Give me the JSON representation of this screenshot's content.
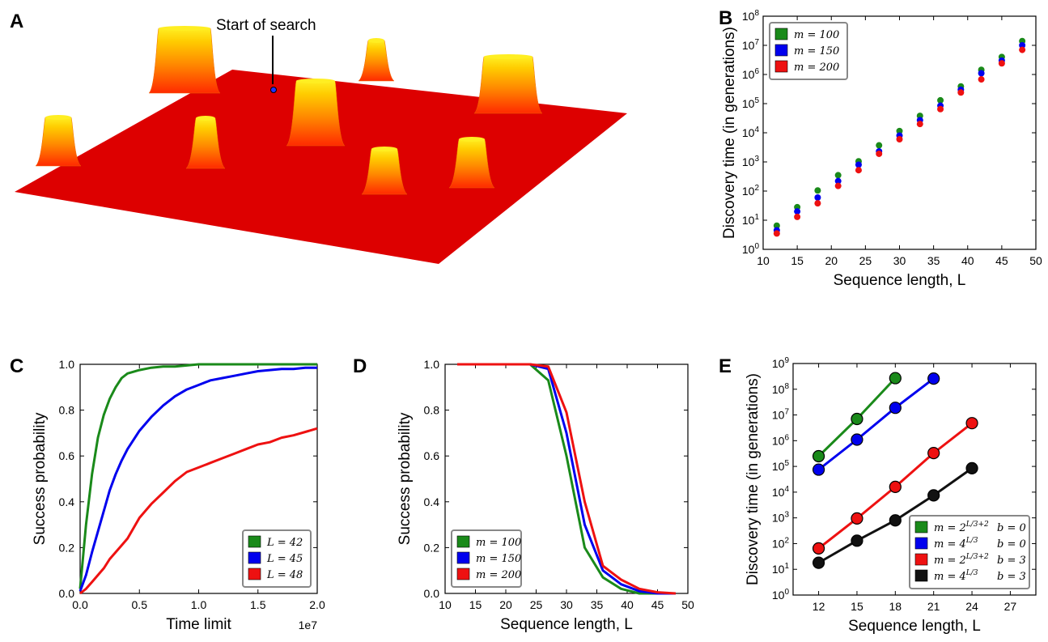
{
  "panel_letters": {
    "a": "A",
    "b": "B",
    "c": "C",
    "d": "D",
    "e": "E"
  },
  "panel_a": {
    "annotation": "Start of search",
    "colors": {
      "base": "#dd0000",
      "peak_low": "#ff3300",
      "peak_mid": "#ff9900",
      "peak_top": "#ffee00"
    }
  },
  "chart_data": [
    {
      "id": "B",
      "type": "scatter",
      "title": "",
      "xlabel": "Sequence length, L",
      "ylabel": "Discovery time (in generations)",
      "xlim": [
        10,
        50
      ],
      "ylim": [
        1,
        100000000
      ],
      "yscale": "log",
      "xticks": [
        "10",
        "15",
        "20",
        "25",
        "30",
        "35",
        "40",
        "45",
        "50"
      ],
      "yticks": [
        "10^0",
        "10^1",
        "10^2",
        "10^3",
        "10^4",
        "10^5",
        "10^6",
        "10^7",
        "10^8"
      ],
      "legend_placement": "top-left",
      "x": [
        12,
        15,
        18,
        21,
        24,
        27,
        30,
        33,
        36,
        39,
        42,
        45,
        48
      ],
      "series": [
        {
          "name": "m=100",
          "color": "#1a8a1a",
          "values": [
            6.5,
            28,
            105,
            350,
            1050,
            3700,
            11500,
            38000,
            130000,
            390000,
            1450000,
            4000000,
            14000000
          ]
        },
        {
          "name": "m=150",
          "color": "#0000ee",
          "values": [
            4.5,
            20,
            60,
            220,
            800,
            2300,
            8000,
            27000,
            85000,
            300000,
            1100000,
            3000000,
            10000000
          ]
        },
        {
          "name": "m=200",
          "color": "#ee1111",
          "values": [
            3.5,
            13,
            38,
            150,
            520,
            1900,
            6000,
            20000,
            65000,
            240000,
            680000,
            2400000,
            7000000
          ]
        }
      ]
    },
    {
      "id": "C",
      "type": "line",
      "title": "",
      "xlabel": "Time limit",
      "ylabel": "Success probability",
      "x_multiplier": "1e7",
      "xlim": [
        0,
        2.0
      ],
      "ylim": [
        0,
        1.0
      ],
      "xticks": [
        "0.0",
        "0.5",
        "1.0",
        "1.5",
        "2.0"
      ],
      "yticks": [
        "0.0",
        "0.2",
        "0.4",
        "0.6",
        "0.8",
        "1.0"
      ],
      "legend_placement": "bottom-right",
      "x": [
        0,
        0.05,
        0.1,
        0.15,
        0.2,
        0.25,
        0.3,
        0.35,
        0.4,
        0.5,
        0.6,
        0.7,
        0.8,
        0.9,
        1.0,
        1.1,
        1.2,
        1.3,
        1.4,
        1.5,
        1.6,
        1.7,
        1.8,
        1.9,
        2.0
      ],
      "series": [
        {
          "name": "L=42",
          "color": "#1a8a1a",
          "values": [
            0.02,
            0.3,
            0.52,
            0.68,
            0.78,
            0.85,
            0.9,
            0.94,
            0.96,
            0.975,
            0.985,
            0.99,
            0.99,
            0.995,
            1.0,
            1.0,
            1.0,
            1.0,
            1.0,
            1.0,
            1.0,
            1.0,
            1.0,
            1.0,
            1.0
          ]
        },
        {
          "name": "L=45",
          "color": "#0000ee",
          "values": [
            0.01,
            0.08,
            0.18,
            0.27,
            0.36,
            0.45,
            0.52,
            0.58,
            0.63,
            0.71,
            0.77,
            0.82,
            0.86,
            0.89,
            0.91,
            0.93,
            0.94,
            0.95,
            0.96,
            0.97,
            0.975,
            0.98,
            0.98,
            0.985,
            0.985
          ]
        },
        {
          "name": "L=48",
          "color": "#ee1111",
          "values": [
            0.0,
            0.02,
            0.05,
            0.08,
            0.11,
            0.15,
            0.18,
            0.21,
            0.24,
            0.33,
            0.39,
            0.44,
            0.49,
            0.53,
            0.55,
            0.57,
            0.59,
            0.61,
            0.63,
            0.65,
            0.66,
            0.68,
            0.69,
            0.705,
            0.72
          ]
        }
      ]
    },
    {
      "id": "D",
      "type": "line",
      "title": "",
      "xlabel": "Sequence length, L",
      "ylabel": "Success probability",
      "xlim": [
        10,
        50
      ],
      "ylim": [
        0,
        1.0
      ],
      "xticks": [
        "10",
        "15",
        "20",
        "25",
        "30",
        "35",
        "40",
        "45",
        "50"
      ],
      "yticks": [
        "0.0",
        "0.2",
        "0.4",
        "0.6",
        "0.8",
        "1.0"
      ],
      "legend_placement": "bottom-left",
      "x": [
        12,
        15,
        18,
        21,
        24,
        27,
        30,
        33,
        36,
        39,
        42,
        45,
        48
      ],
      "series": [
        {
          "name": "m=100",
          "color": "#1a8a1a",
          "values": [
            1.0,
            1.0,
            1.0,
            1.0,
            1.0,
            0.93,
            0.6,
            0.2,
            0.07,
            0.02,
            0.0,
            0.0,
            0.0
          ]
        },
        {
          "name": "m=150",
          "color": "#0000ee",
          "values": [
            1.0,
            1.0,
            1.0,
            1.0,
            1.0,
            0.98,
            0.7,
            0.3,
            0.1,
            0.04,
            0.01,
            0.0,
            0.0
          ]
        },
        {
          "name": "m=200",
          "color": "#ee1111",
          "values": [
            1.0,
            1.0,
            1.0,
            1.0,
            1.0,
            0.99,
            0.79,
            0.4,
            0.12,
            0.06,
            0.02,
            0.005,
            0.0
          ]
        }
      ]
    },
    {
      "id": "E",
      "type": "line",
      "title": "",
      "xlabel": "Sequence length, L",
      "ylabel": "Discovery time (in generations)",
      "xlim": [
        10,
        29
      ],
      "ylim": [
        1,
        1000000000
      ],
      "yscale": "log",
      "xticks": [
        "12",
        "15",
        "18",
        "21",
        "24",
        "27"
      ],
      "yticks": [
        "10^0",
        "10^1",
        "10^2",
        "10^3",
        "10^4",
        "10^5",
        "10^6",
        "10^7",
        "10^8",
        "10^9"
      ],
      "legend_placement": "bottom-right",
      "series": [
        {
          "name": "m=2^{L/3+2}",
          "b": "b=0",
          "color": "#1a8a1a",
          "x": [
            12,
            15,
            18
          ],
          "values": [
            250000,
            7000000,
            270000000
          ]
        },
        {
          "name": "m=4^{L/3}",
          "b": "b=0",
          "color": "#0000ee",
          "x": [
            12,
            15,
            18,
            21
          ],
          "values": [
            75000,
            1100000,
            19000000,
            260000000
          ]
        },
        {
          "name": "m=2^{L/3+2}",
          "b": "b=3",
          "color": "#ee1111",
          "x": [
            12,
            15,
            18,
            21,
            24
          ],
          "values": [
            65,
            950,
            16000,
            330000,
            4800000
          ]
        },
        {
          "name": "m=4^{L/3}",
          "b": "b=3",
          "color": "#111111",
          "x": [
            12,
            15,
            18,
            21,
            24
          ],
          "values": [
            18,
            130,
            800,
            7500,
            85000
          ]
        }
      ]
    }
  ]
}
